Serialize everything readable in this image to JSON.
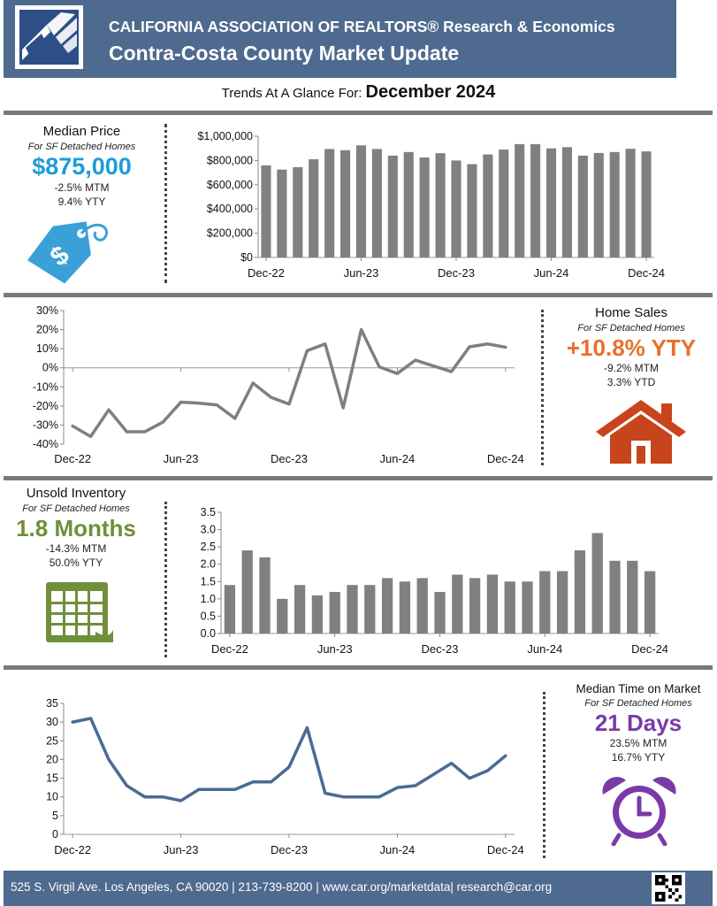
{
  "header": {
    "line1": "CALIFORNIA ASSOCIATION OF REALTORS® Research & Economics",
    "line2": "Contra-Costa County Market Update"
  },
  "trends": {
    "lead": "Trends At A Glance For: ",
    "month": "December 2024"
  },
  "colors": {
    "header_bg": "#4f6a8f",
    "bar": "#808080",
    "line_gray": "#7f7f7f",
    "line_blue": "#4a6a94",
    "price_blue": "#1e9cd7",
    "sales_orange": "#e8702a",
    "house_red": "#c8441c",
    "inventory_green": "#6f8f3a",
    "days_purple": "#7a3aa8"
  },
  "median_price": {
    "title": "Median Price",
    "subtitle": "For SF Detached Homes",
    "value": "$875,000",
    "mtm": "-2.5% MTM",
    "yty": "9.4% YTY",
    "icon": "price-tag-icon"
  },
  "home_sales": {
    "title": "Home Sales",
    "subtitle": "For SF Detached Homes",
    "value": "+10.8% YTY",
    "mtm": "-9.2% MTM",
    "ytd": "3.3% YTD",
    "icon": "house-icon"
  },
  "unsold_inventory": {
    "title": "Unsold Inventory",
    "subtitle": "For SF Detached Homes",
    "value": "1.8 Months",
    "mtm": "-14.3% MTM",
    "yty": "50.0% YTY",
    "icon": "calendar-icon"
  },
  "time_on_market": {
    "title": "Median Time on Market",
    "subtitle": "For SF Detached Homes",
    "value": "21 Days",
    "mtm": "23.5% MTM",
    "yty": "16.7% YTY",
    "icon": "alarm-clock-icon"
  },
  "chart_data": [
    {
      "id": "price",
      "type": "bar",
      "x": [
        "Dec-22",
        "Jan-23",
        "Feb-23",
        "Mar-23",
        "Apr-23",
        "May-23",
        "Jun-23",
        "Jul-23",
        "Aug-23",
        "Sep-23",
        "Oct-23",
        "Nov-23",
        "Dec-23",
        "Jan-24",
        "Feb-24",
        "Mar-24",
        "Apr-24",
        "May-24",
        "Jun-24",
        "Jul-24",
        "Aug-24",
        "Sep-24",
        "Oct-24",
        "Nov-24",
        "Dec-24"
      ],
      "values": [
        760000,
        725000,
        745000,
        810000,
        895000,
        885000,
        925000,
        895000,
        840000,
        870000,
        825000,
        860000,
        800000,
        770000,
        850000,
        890000,
        935000,
        935000,
        900000,
        910000,
        840000,
        862000,
        870000,
        897000,
        875000
      ],
      "tick_labels": [
        "Dec-22",
        "Jun-23",
        "Dec-23",
        "Jun-24",
        "Dec-24"
      ],
      "ylim": [
        0,
        1000000
      ],
      "yticks": [
        "$0",
        "$200,000",
        "$400,000",
        "$600,000",
        "$800,000",
        "$1,000,000"
      ]
    },
    {
      "id": "sales",
      "type": "line",
      "x": [
        "Dec-22",
        "Jan-23",
        "Feb-23",
        "Mar-23",
        "Apr-23",
        "May-23",
        "Jun-23",
        "Jul-23",
        "Aug-23",
        "Sep-23",
        "Oct-23",
        "Nov-23",
        "Dec-23",
        "Jan-24",
        "Feb-24",
        "Mar-24",
        "Apr-24",
        "May-24",
        "Jun-24",
        "Jul-24",
        "Aug-24",
        "Sep-24",
        "Oct-24",
        "Nov-24",
        "Dec-24"
      ],
      "values": [
        -30.5,
        -36,
        -22,
        -33.5,
        -33.5,
        -28.5,
        -18,
        -18.5,
        -19.5,
        -26.5,
        -8,
        -15.5,
        -19,
        9,
        12.5,
        -21,
        20,
        0.5,
        -3,
        4,
        1,
        -2,
        11,
        12.5,
        10.8
      ],
      "tick_labels": [
        "Dec-22",
        "Jun-23",
        "Dec-23",
        "Jun-24",
        "Dec-24"
      ],
      "ylim": [
        -40,
        30
      ],
      "yticks": [
        "-40%",
        "-30%",
        "-20%",
        "-10%",
        "0%",
        "10%",
        "20%",
        "30%"
      ]
    },
    {
      "id": "inventory",
      "type": "bar",
      "x": [
        "Dec-22",
        "Jan-23",
        "Feb-23",
        "Mar-23",
        "Apr-23",
        "May-23",
        "Jun-23",
        "Jul-23",
        "Aug-23",
        "Sep-23",
        "Oct-23",
        "Nov-23",
        "Dec-23",
        "Jan-24",
        "Feb-24",
        "Mar-24",
        "Apr-24",
        "May-24",
        "Jun-24",
        "Jul-24",
        "Aug-24",
        "Sep-24",
        "Oct-24",
        "Nov-24",
        "Dec-24"
      ],
      "values": [
        1.4,
        2.4,
        2.2,
        1.0,
        1.4,
        1.1,
        1.2,
        1.4,
        1.4,
        1.6,
        1.5,
        1.6,
        1.2,
        1.7,
        1.6,
        1.7,
        1.5,
        1.5,
        1.8,
        1.8,
        2.4,
        2.9,
        2.1,
        2.1,
        1.8
      ],
      "tick_labels": [
        "Dec-22",
        "Jun-23",
        "Dec-23",
        "Jun-24",
        "Dec-24"
      ],
      "ylim": [
        0,
        3.5
      ],
      "yticks": [
        "0.0",
        "0.5",
        "1.0",
        "1.5",
        "2.0",
        "2.5",
        "3.0",
        "3.5"
      ]
    },
    {
      "id": "dom",
      "type": "line",
      "x": [
        "Dec-22",
        "Jan-23",
        "Feb-23",
        "Mar-23",
        "Apr-23",
        "May-23",
        "Jun-23",
        "Jul-23",
        "Aug-23",
        "Sep-23",
        "Oct-23",
        "Nov-23",
        "Dec-23",
        "Jan-24",
        "Feb-24",
        "Mar-24",
        "Apr-24",
        "May-24",
        "Jun-24",
        "Jul-24",
        "Aug-24",
        "Sep-24",
        "Oct-24",
        "Nov-24",
        "Dec-24"
      ],
      "values": [
        30,
        31,
        20,
        13,
        10,
        10,
        9,
        12,
        12,
        12,
        14,
        14,
        18,
        28.5,
        11,
        10,
        10,
        10,
        12.5,
        13,
        16,
        19,
        15,
        17,
        21
      ],
      "tick_labels": [
        "Dec-22",
        "Jun-23",
        "Dec-23",
        "Jun-24",
        "Dec-24"
      ],
      "ylim": [
        0,
        35
      ],
      "yticks": [
        "0",
        "5",
        "10",
        "15",
        "20",
        "25",
        "30",
        "35"
      ]
    }
  ],
  "footer": {
    "text": "525 S. Virgil Ave. Los Angeles, CA 90020 | 213-739-8200 | www.car.org/marketdata| research@car.org",
    "qr": "qr-code-icon"
  }
}
